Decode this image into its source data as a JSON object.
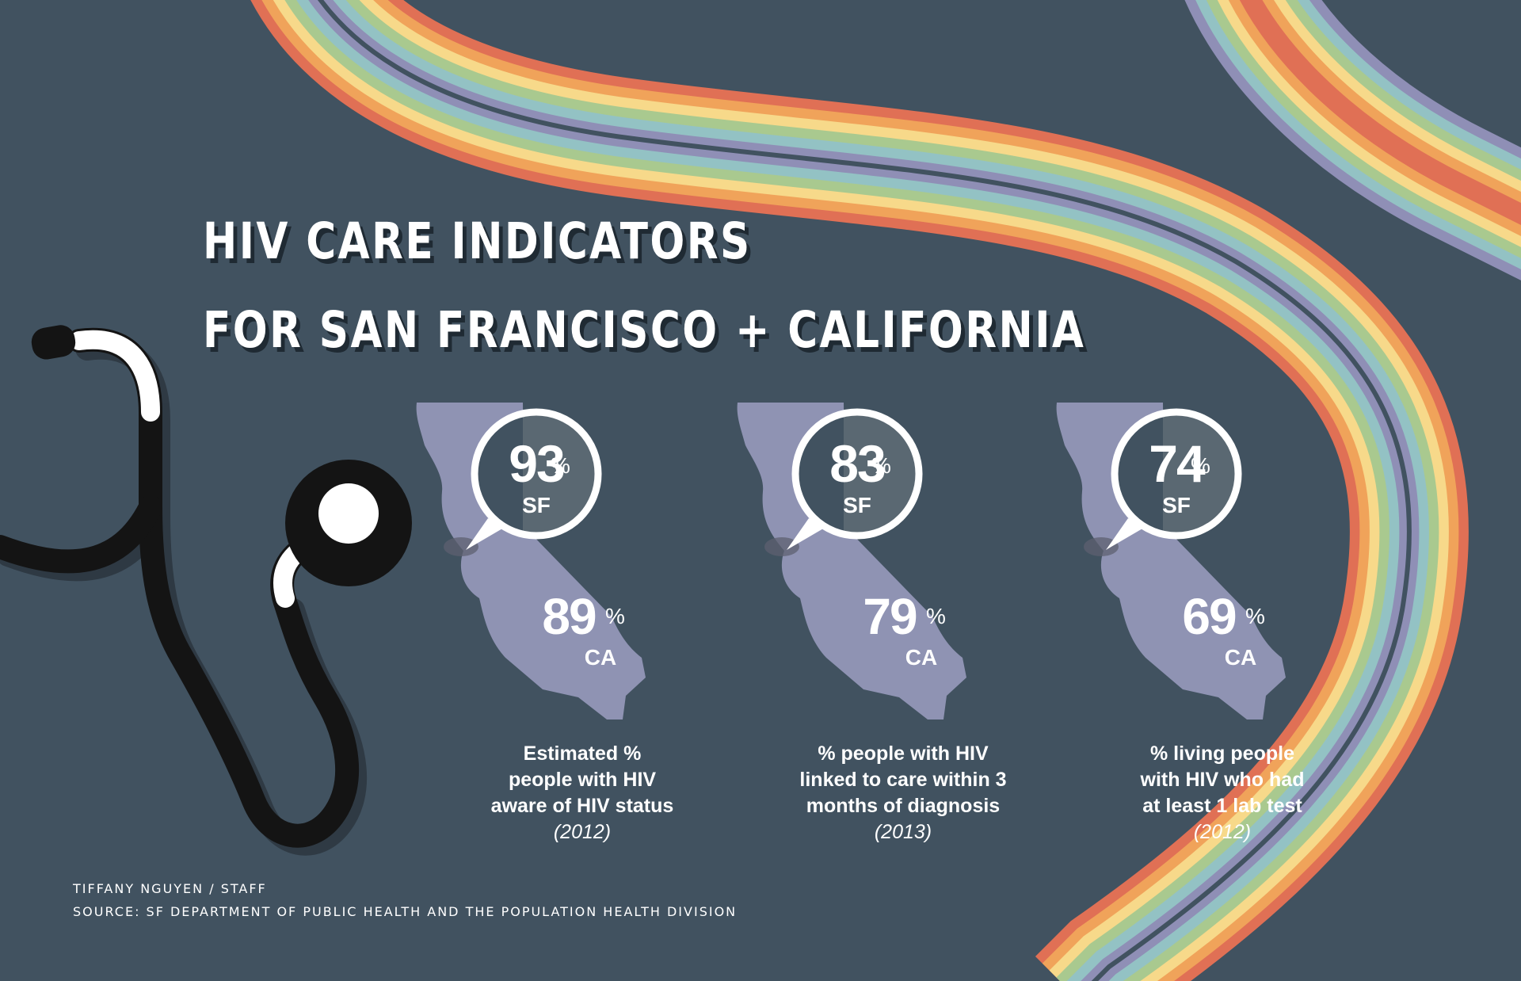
{
  "title": {
    "line1": "HIV CARE INDICATORS",
    "line2": "FOR SAN FRANCISCO + CALIFORNIA"
  },
  "colors": {
    "background": "#415260",
    "state": "#8f93b3",
    "bubble_ring": "#ffffff",
    "rainbow": [
      "#e07055",
      "#f0a35a",
      "#f7d98a",
      "#a9c98f",
      "#93c2c4",
      "#8f8fb6"
    ]
  },
  "icons": [
    "stethoscope-icon",
    "california-map-icon",
    "speech-bubble-icon"
  ],
  "chart_data": {
    "type": "table",
    "columns": [
      "SF",
      "CA"
    ],
    "unit": "%",
    "indicators": [
      {
        "label": "Estimated % people with HIV aware of HIV status",
        "year": "(2012)",
        "sf": 93,
        "ca": 89
      },
      {
        "label": "% people with HIV linked to care within 3 months of diagnosis",
        "year": "(2013)",
        "sf": 83,
        "ca": 79
      },
      {
        "label": "% living people with HIV who had at least 1 lab test",
        "year": "(2012)",
        "sf": 74,
        "ca": 69
      }
    ]
  },
  "panels": [
    {
      "sf_value": "93",
      "sf_label": "SF",
      "ca_value": "89",
      "ca_label": "CA",
      "pct": "%",
      "desc_lines": [
        "Estimated %",
        "people with HIV",
        "aware of HIV status"
      ],
      "year": "(2012)"
    },
    {
      "sf_value": "83",
      "sf_label": "SF",
      "ca_value": "79",
      "ca_label": "CA",
      "pct": "%",
      "desc_lines": [
        "% people with HIV",
        "linked to care within 3",
        "months of diagnosis"
      ],
      "year": "(2013)"
    },
    {
      "sf_value": "74",
      "sf_label": "SF",
      "ca_value": "69",
      "ca_label": "CA",
      "pct": "%",
      "desc_lines": [
        "% living people",
        "with HIV who had",
        "at least 1 lab test"
      ],
      "year": "(2012)"
    }
  ],
  "credits": {
    "author": "TIFFANY NGUYEN / STAFF",
    "source": "SOURCE: SF DEPARTMENT OF PUBLIC HEALTH AND THE POPULATION HEALTH DIVISION"
  }
}
